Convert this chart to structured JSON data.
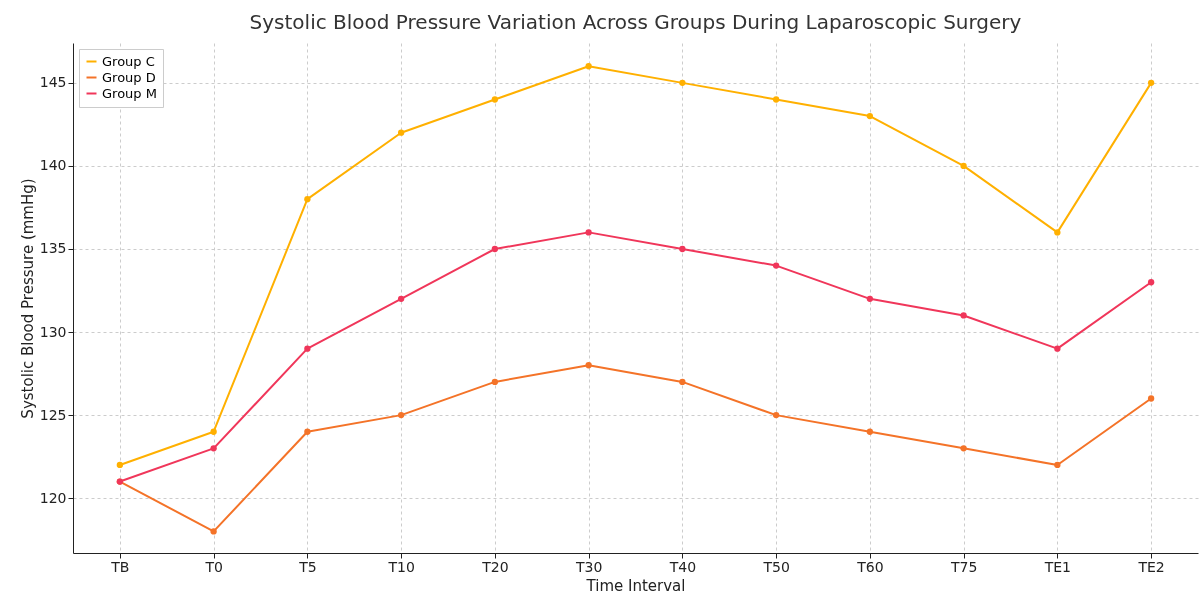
{
  "chart_data": {
    "type": "line",
    "title": "Systolic Blood Pressure Variation Across Groups During Laparoscopic Surgery",
    "xlabel": "Time Interval",
    "ylabel": "Systolic Blood Pressure (mmHg)",
    "categories": [
      "TB",
      "T0",
      "T5",
      "T10",
      "T20",
      "T30",
      "T40",
      "T50",
      "T60",
      "T75",
      "TE1",
      "TE2"
    ],
    "series": [
      {
        "name": "Group C",
        "color": "#ffb000",
        "values": [
          122,
          124,
          138,
          142,
          144,
          146,
          145,
          144,
          143,
          140,
          136,
          145
        ]
      },
      {
        "name": "Group D",
        "color": "#f47328",
        "values": [
          121,
          118,
          124,
          125,
          127,
          128,
          127,
          125,
          124,
          123,
          122,
          126
        ]
      },
      {
        "name": "Group M",
        "color": "#f0365a",
        "values": [
          121,
          123,
          129,
          132,
          135,
          136,
          135,
          134,
          132,
          131,
          129,
          133
        ]
      }
    ],
    "ylim": [
      116.7,
      147.4
    ],
    "yticks": [
      120,
      125,
      130,
      135,
      140,
      145
    ],
    "grid": true,
    "legend": "top left",
    "marker": "circle",
    "line_style": "solid"
  }
}
